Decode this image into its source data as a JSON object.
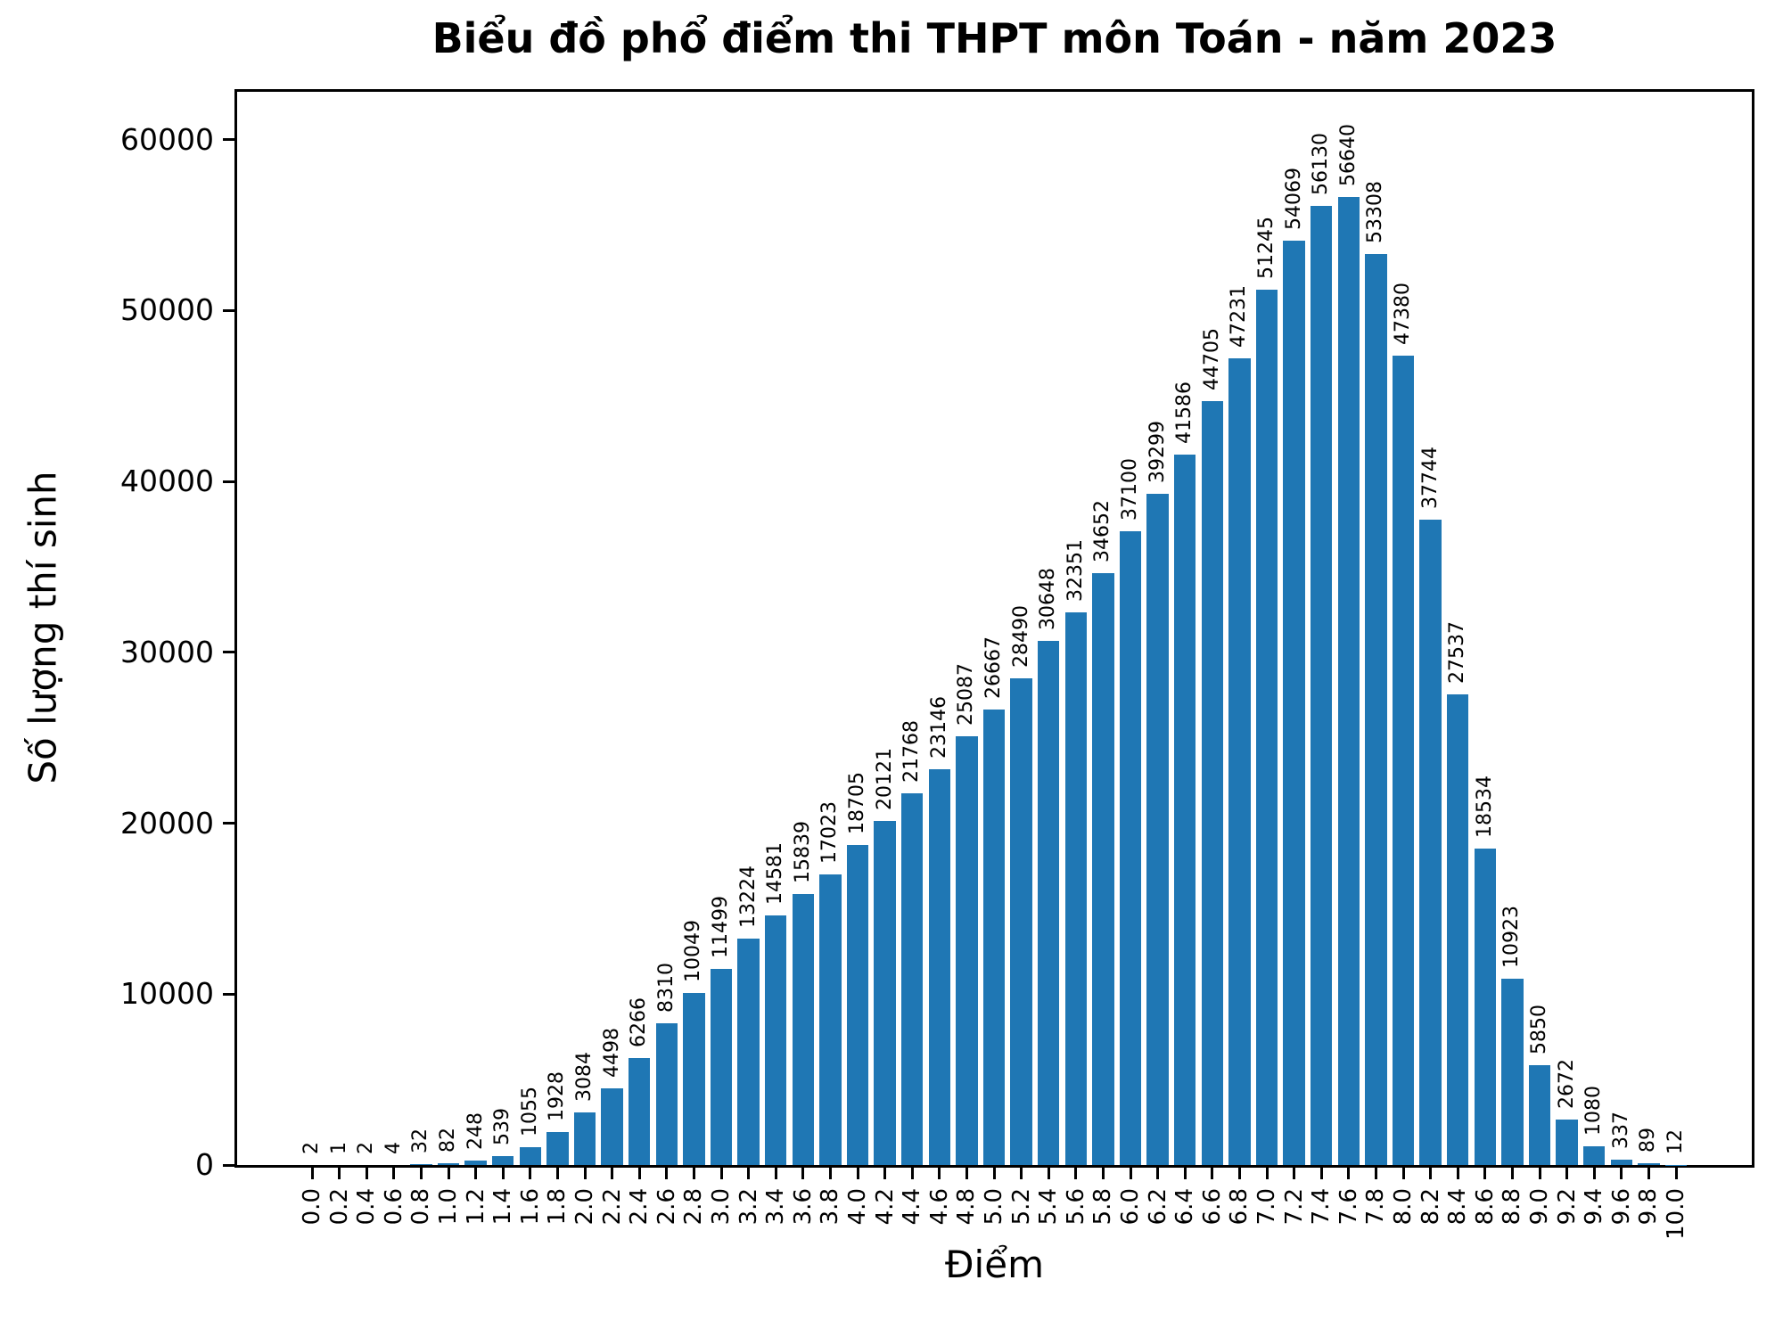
{
  "chart_data": {
    "type": "bar",
    "title": "Biểu đồ phổ điểm thi THPT môn Toán - năm 2023",
    "xlabel": "Điểm",
    "ylabel": "Số lượng thí sinh",
    "categories": [
      "0.0",
      "0.2",
      "0.4",
      "0.6",
      "0.8",
      "1.0",
      "1.2",
      "1.4",
      "1.6",
      "1.8",
      "2.0",
      "2.2",
      "2.4",
      "2.6",
      "2.8",
      "3.0",
      "3.2",
      "3.4",
      "3.6",
      "3.8",
      "4.0",
      "4.2",
      "4.4",
      "4.6",
      "4.8",
      "5.0",
      "5.2",
      "5.4",
      "5.6",
      "5.8",
      "6.0",
      "6.2",
      "6.4",
      "6.6",
      "6.8",
      "7.0",
      "7.2",
      "7.4",
      "7.6",
      "7.8",
      "8.0",
      "8.2",
      "8.4",
      "8.6",
      "8.8",
      "9.0",
      "9.2",
      "9.4",
      "9.6",
      "9.8",
      "10.0"
    ],
    "values": [
      2,
      1,
      2,
      4,
      32,
      82,
      248,
      539,
      1055,
      1928,
      3084,
      4498,
      6266,
      8310,
      10049,
      11499,
      13224,
      14581,
      15839,
      17023,
      18705,
      20121,
      21768,
      23146,
      25087,
      26667,
      28490,
      30648,
      32351,
      34652,
      37100,
      39299,
      41586,
      44705,
      47231,
      51245,
      54069,
      56130,
      56640,
      53308,
      47380,
      37744,
      27537,
      18534,
      10923,
      5850,
      2672,
      1080,
      337,
      89,
      12
    ],
    "yticks": [
      0,
      10000,
      20000,
      30000,
      40000,
      50000,
      60000
    ],
    "ylim": [
      0,
      62800
    ],
    "grid": false,
    "legend": null,
    "bar_color": "#1f77b4",
    "axis_color": "#000000",
    "value_label_rotation_deg": 90,
    "x_tick_rotation_deg": 90
  }
}
